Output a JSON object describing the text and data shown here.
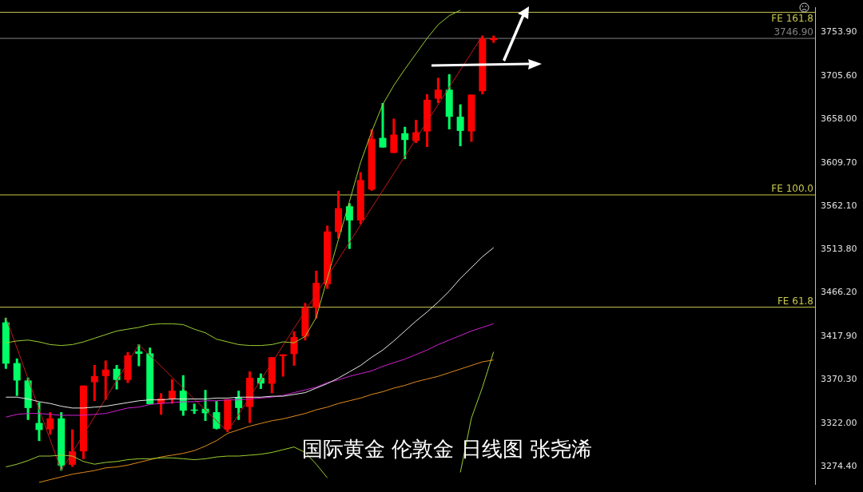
{
  "chart_data": {
    "type": "candlestick",
    "categories": [
      null,
      null,
      null,
      null,
      null,
      null,
      null,
      null,
      null,
      null,
      null,
      null,
      null,
      null,
      null,
      null,
      null,
      null,
      null,
      null,
      null,
      null,
      null,
      null,
      null,
      null,
      null,
      null,
      null,
      null,
      null,
      null,
      null,
      null,
      null,
      null,
      null,
      null,
      null,
      null,
      null,
      null,
      null,
      null,
      null
    ],
    "ohlc": [
      [
        3433.5,
        3438.6,
        3382.3,
        3388.0
      ],
      [
        3388.6,
        3393.7,
        3352.4,
        3369.4
      ],
      [
        3369.4,
        3372.6,
        3325.9,
        3339.0
      ],
      [
        3322.5,
        3345.3,
        3302.6,
        3314.8
      ],
      [
        3315.4,
        3334.4,
        3309.7,
        3327.6
      ],
      [
        3327.6,
        3334.4,
        3269.9,
        3275.5
      ],
      [
        3276.4,
        3315.4,
        3274.1,
        3291.2
      ],
      [
        3291.2,
        3363.8,
        3282.7,
        3363.8
      ],
      [
        3367.5,
        3386.5,
        3346.7,
        3374.3
      ],
      [
        3374.3,
        3391.4,
        3348.1,
        3381.4
      ],
      [
        3382.3,
        3386.5,
        3359.5,
        3370.0
      ],
      [
        3370.0,
        3400.8,
        3366.6,
        3397.1
      ],
      [
        3401.4,
        3409.3,
        3385.2,
        3398.8
      ],
      [
        3399.3,
        3405.7,
        3343.3,
        3343.3
      ],
      [
        3343.8,
        3355.3,
        3331.6,
        3349.6
      ],
      [
        3348.7,
        3370.9,
        3343.8,
        3358.1
      ],
      [
        3358.1,
        3375.2,
        3330.5,
        3336.1
      ],
      [
        3337.3,
        3343.8,
        3332.5,
        3336.1
      ],
      [
        3338.2,
        3359.0,
        3324.8,
        3333.3
      ],
      [
        3334.4,
        3346.7,
        3315.4,
        3316.2
      ],
      [
        3315.4,
        3348.7,
        3312.6,
        3348.7
      ],
      [
        3350.4,
        3358.1,
        3325.9,
        3339.0
      ],
      [
        3340.2,
        3379.4,
        3322.5,
        3372.4
      ],
      [
        3372.4,
        3377.1,
        3360.1,
        3366.0
      ],
      [
        3365.8,
        3395.1,
        3355.3,
        3395.1
      ],
      [
        3396.2,
        3398.2,
        3373.7,
        3398.2
      ],
      [
        3398.5,
        3423.6,
        3385.7,
        3417.3
      ],
      [
        3417.9,
        3454.9,
        3413.6,
        3449.7
      ],
      [
        3449.7,
        3490.5,
        3437.8,
        3477.1
      ],
      [
        3475.7,
        3540.3,
        3470.6,
        3533.8
      ],
      [
        3533.2,
        3578.7,
        3526.1,
        3559.6
      ],
      [
        3561.6,
        3565.0,
        3514.6,
        3546.0
      ],
      [
        3546.0,
        3599.2,
        3541.7,
        3590.6
      ],
      [
        3580.1,
        3646.5,
        3578.7,
        3636.2
      ],
      [
        3637.1,
        3675.5,
        3626.5,
        3626.5
      ],
      [
        3620.5,
        3658.4,
        3620.5,
        3640.7
      ],
      [
        3642.2,
        3649.3,
        3613.7,
        3634.8
      ],
      [
        3633.7,
        3657.0,
        3631.4,
        3643.3
      ],
      [
        3644.2,
        3685.4,
        3627.1,
        3679.2
      ],
      [
        3680.3,
        3703.4,
        3675.5,
        3690.3
      ],
      [
        3690.3,
        3707.4,
        3646.5,
        3660.4
      ],
      [
        3660.4,
        3674.1,
        3627.9,
        3644.8
      ],
      [
        3644.2,
        3684.9,
        3632.8,
        3684.9
      ],
      [
        3688.6,
        3750.0,
        3685.2,
        3746.7
      ],
      [
        3745.0,
        3750.0,
        3742.0,
        3746.9
      ]
    ],
    "colors": [
      "#00ff66",
      "#00ff66",
      "#00ff66",
      "#00ff66",
      "#ff0000",
      "#00ff66",
      "#ff0000",
      "#ff0000",
      "#ff0000",
      "#ff0000",
      "#00ff66",
      "#ff0000",
      "#00ff66",
      "#00ff66",
      "#ff0000",
      "#ff0000",
      "#00ff66",
      "#00ff66",
      "#00ff66",
      "#00ff66",
      "#ff0000",
      "#00ff66",
      "#ff0000",
      "#00ff66",
      "#ff0000",
      "#ff0000",
      "#ff0000",
      "#ff0000",
      "#ff0000",
      "#ff0000",
      "#ff0000",
      "#00ff66",
      "#ff0000",
      "#ff0000",
      "#00ff66",
      "#ff0000",
      "#00ff66",
      "#ff0000",
      "#ff0000",
      "#ff0000",
      "#00ff66",
      "#00ff66",
      "#ff0000",
      "#ff0000",
      "#ff0000"
    ],
    "series": [
      {
        "type": "line",
        "color": "#9acd32",
        "values": [
          3411,
          3413,
          3414,
          3412,
          3409,
          3408,
          3409,
          3412,
          3416,
          3420,
          3424,
          3426,
          3428,
          3431,
          3432,
          3432,
          3431,
          3426,
          3422,
          3415,
          3412,
          3409,
          3408,
          3408,
          3409,
          3412,
          3411,
          3418,
          3439,
          3482,
          3525,
          3567,
          3610,
          3644,
          3674,
          3695,
          3713,
          3730,
          3747,
          3762,
          3772,
          3778,
          null,
          null,
          null
        ]
      },
      {
        "type": "line",
        "color": "#9acd32",
        "values": [
          3274,
          3277,
          3281,
          3286,
          3286,
          3287,
          3286,
          3280,
          3277,
          3279,
          3280,
          3282,
          3283,
          3283,
          3284,
          3284,
          3283,
          3282,
          3283,
          3285,
          3286,
          3286,
          3287,
          3288,
          3290,
          3293,
          3296,
          3290,
          3277,
          3262,
          null,
          null,
          null,
          null,
          null,
          null,
          null,
          null,
          null,
          null,
          null,
          3268,
          3328,
          3362,
          3401
        ]
      },
      {
        "type": "line",
        "color": "#e8e8e8",
        "values": [
          3351,
          3351,
          3349,
          3346,
          3344,
          3341,
          3339,
          3339,
          3340,
          3341,
          3343,
          3345,
          3347,
          3348,
          3348,
          3349,
          3349,
          3349,
          3349,
          3350,
          3350,
          3351,
          3351,
          3351,
          3352,
          3352,
          3354,
          3356,
          3361,
          3366,
          3372,
          3379,
          3386,
          3395,
          3403,
          3413,
          3424,
          3435,
          3445,
          3456,
          3468,
          3482,
          3494,
          3506,
          3516
        ]
      },
      {
        "type": "line",
        "color": "#d020d0",
        "values": [
          3329,
          3332,
          3333,
          3333,
          3332,
          3331,
          3331,
          3331,
          3332,
          3333,
          3336,
          3339,
          3340,
          3343,
          3344,
          3345,
          3346,
          3346,
          3347,
          3347,
          3348,
          3348,
          3349,
          3350,
          3351,
          3353,
          3356,
          3359,
          3362,
          3367,
          3370,
          3374,
          3377,
          3380,
          3385,
          3389,
          3393,
          3398,
          3403,
          3409,
          3414,
          3419,
          3424,
          3428,
          3432
        ]
      },
      {
        "type": "line",
        "color": "#e08a1e",
        "values": [
          null,
          null,
          null,
          3257,
          3260,
          3263,
          3266,
          3268,
          3270,
          3273,
          3274,
          3276,
          3279,
          3282,
          3285,
          3287,
          3289,
          3292,
          3297,
          3303,
          3311,
          3315,
          3319,
          3322,
          3325,
          3327,
          3330,
          3333,
          3337,
          3340,
          3344,
          3347,
          3350,
          3354,
          3357,
          3361,
          3364,
          3368,
          3371,
          3374,
          3378,
          3382,
          3386,
          3390,
          3392
        ]
      },
      {
        "type": "line",
        "color": "#c01818",
        "values": [
          3439,
          null,
          null,
          null,
          null,
          3270,
          null,
          null,
          null,
          null,
          null,
          null,
          3409,
          null,
          null,
          null,
          null,
          null,
          null,
          null,
          3313,
          null,
          null,
          null,
          null,
          null,
          null,
          null,
          null,
          null,
          null,
          null,
          null,
          null,
          null,
          null,
          null,
          null,
          null,
          null,
          null,
          null,
          null,
          3750,
          null
        ]
      }
    ],
    "ylim": [
      3254.8,
      3780.8
    ],
    "yticks": [
      {
        "value": 3274.4,
        "label": "3274.40"
      },
      {
        "value": 3322,
        "label": "3322.00"
      },
      {
        "value": 3370.3,
        "label": "3370.30"
      },
      {
        "value": 3417.9,
        "label": "3417.90"
      },
      {
        "value": 3466.2,
        "label": "3466.20"
      },
      {
        "value": 3513.8,
        "label": "3513.80"
      },
      {
        "value": 3562.1,
        "label": "3562.10"
      },
      {
        "value": 3609.7,
        "label": "3609.70"
      },
      {
        "value": 3658,
        "label": "3658.00"
      },
      {
        "value": 3705.6,
        "label": "3705.60"
      },
      {
        "value": 3753.9,
        "label": "3753.90"
      }
    ],
    "ref_lines": [
      {
        "axis": "y",
        "value": 3775.7,
        "label": "FE 161.8",
        "color": "#c8c850"
      },
      {
        "axis": "y",
        "value": 3574.2,
        "label": "FE 100.0",
        "color": "#c8c850"
      },
      {
        "axis": "y",
        "value": 3450.3,
        "label": "FE 61.8",
        "color": "#c8c850"
      },
      {
        "axis": "y",
        "value": 3746.9,
        "label": "3746.90",
        "color": "#808080"
      }
    ],
    "annotations": [
      "国际黄金 伦敦金 日线图 张尧浠"
    ],
    "grid": false,
    "legend": false,
    "tick_labels": "y"
  }
}
